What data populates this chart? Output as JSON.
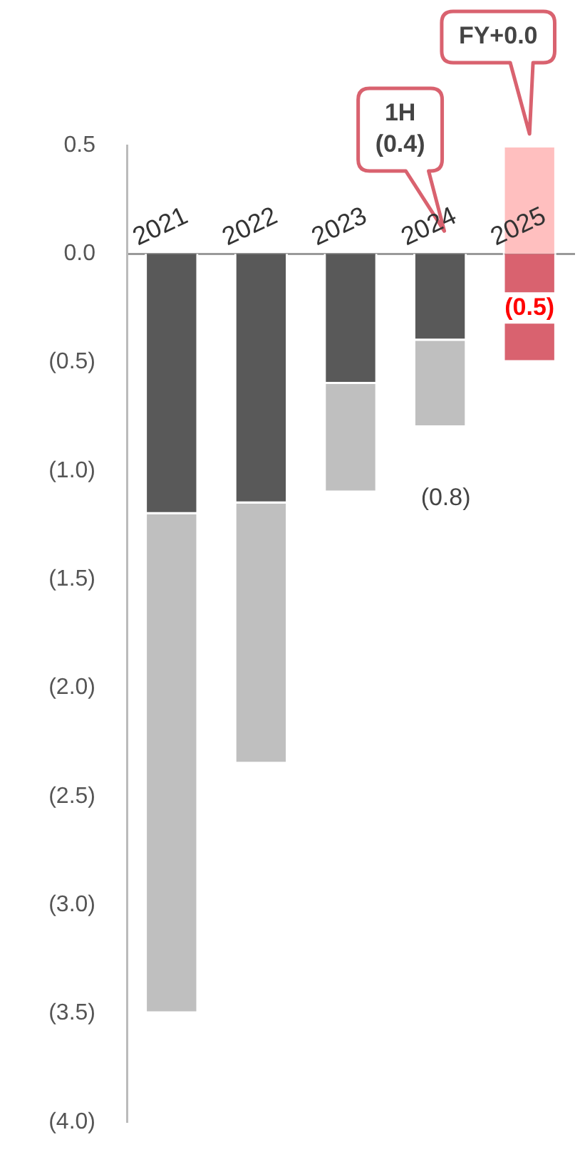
{
  "chart_data": {
    "type": "bar",
    "stacked": true,
    "categories": [
      "2021",
      "2022",
      "2023",
      "2024",
      "2025"
    ],
    "series": [
      {
        "color": "#595959",
        "values": [
          -1.2,
          -1.15,
          -0.6,
          -0.4,
          null
        ]
      },
      {
        "color": "#bfbfbf",
        "values": [
          -2.3,
          -1.2,
          -0.5,
          -0.4,
          null
        ]
      },
      {
        "color": "#d9626f",
        "values": [
          null,
          null,
          null,
          null,
          -0.5
        ],
        "value_labels": [
          null,
          null,
          null,
          null,
          "(0.5)"
        ]
      },
      {
        "color": "#ffbfbf",
        "values": [
          null,
          null,
          null,
          null,
          0.5
        ]
      }
    ],
    "ylim": [
      -4.0,
      0.5
    ],
    "yticks": [
      {
        "value": 0.5,
        "label": "0.5"
      },
      {
        "value": 0,
        "label": "0.0"
      },
      {
        "value": -0.5,
        "label": "(0.5)"
      },
      {
        "value": -1,
        "label": "(1.0)"
      },
      {
        "value": -1.5,
        "label": "(1.5)"
      },
      {
        "value": -2,
        "label": "(2.0)"
      },
      {
        "value": -2.5,
        "label": "(2.5)"
      },
      {
        "value": -3,
        "label": "(3.0)"
      },
      {
        "value": -3.5,
        "label": "(3.5)"
      },
      {
        "value": -4,
        "label": "(4.0)"
      }
    ],
    "grid": false,
    "legend": false,
    "annotations": [
      "1H\n(0.4)",
      "FY+0.0",
      {
        "text": "(0.8)",
        "x": "2024",
        "y": -0.8
      }
    ]
  }
}
